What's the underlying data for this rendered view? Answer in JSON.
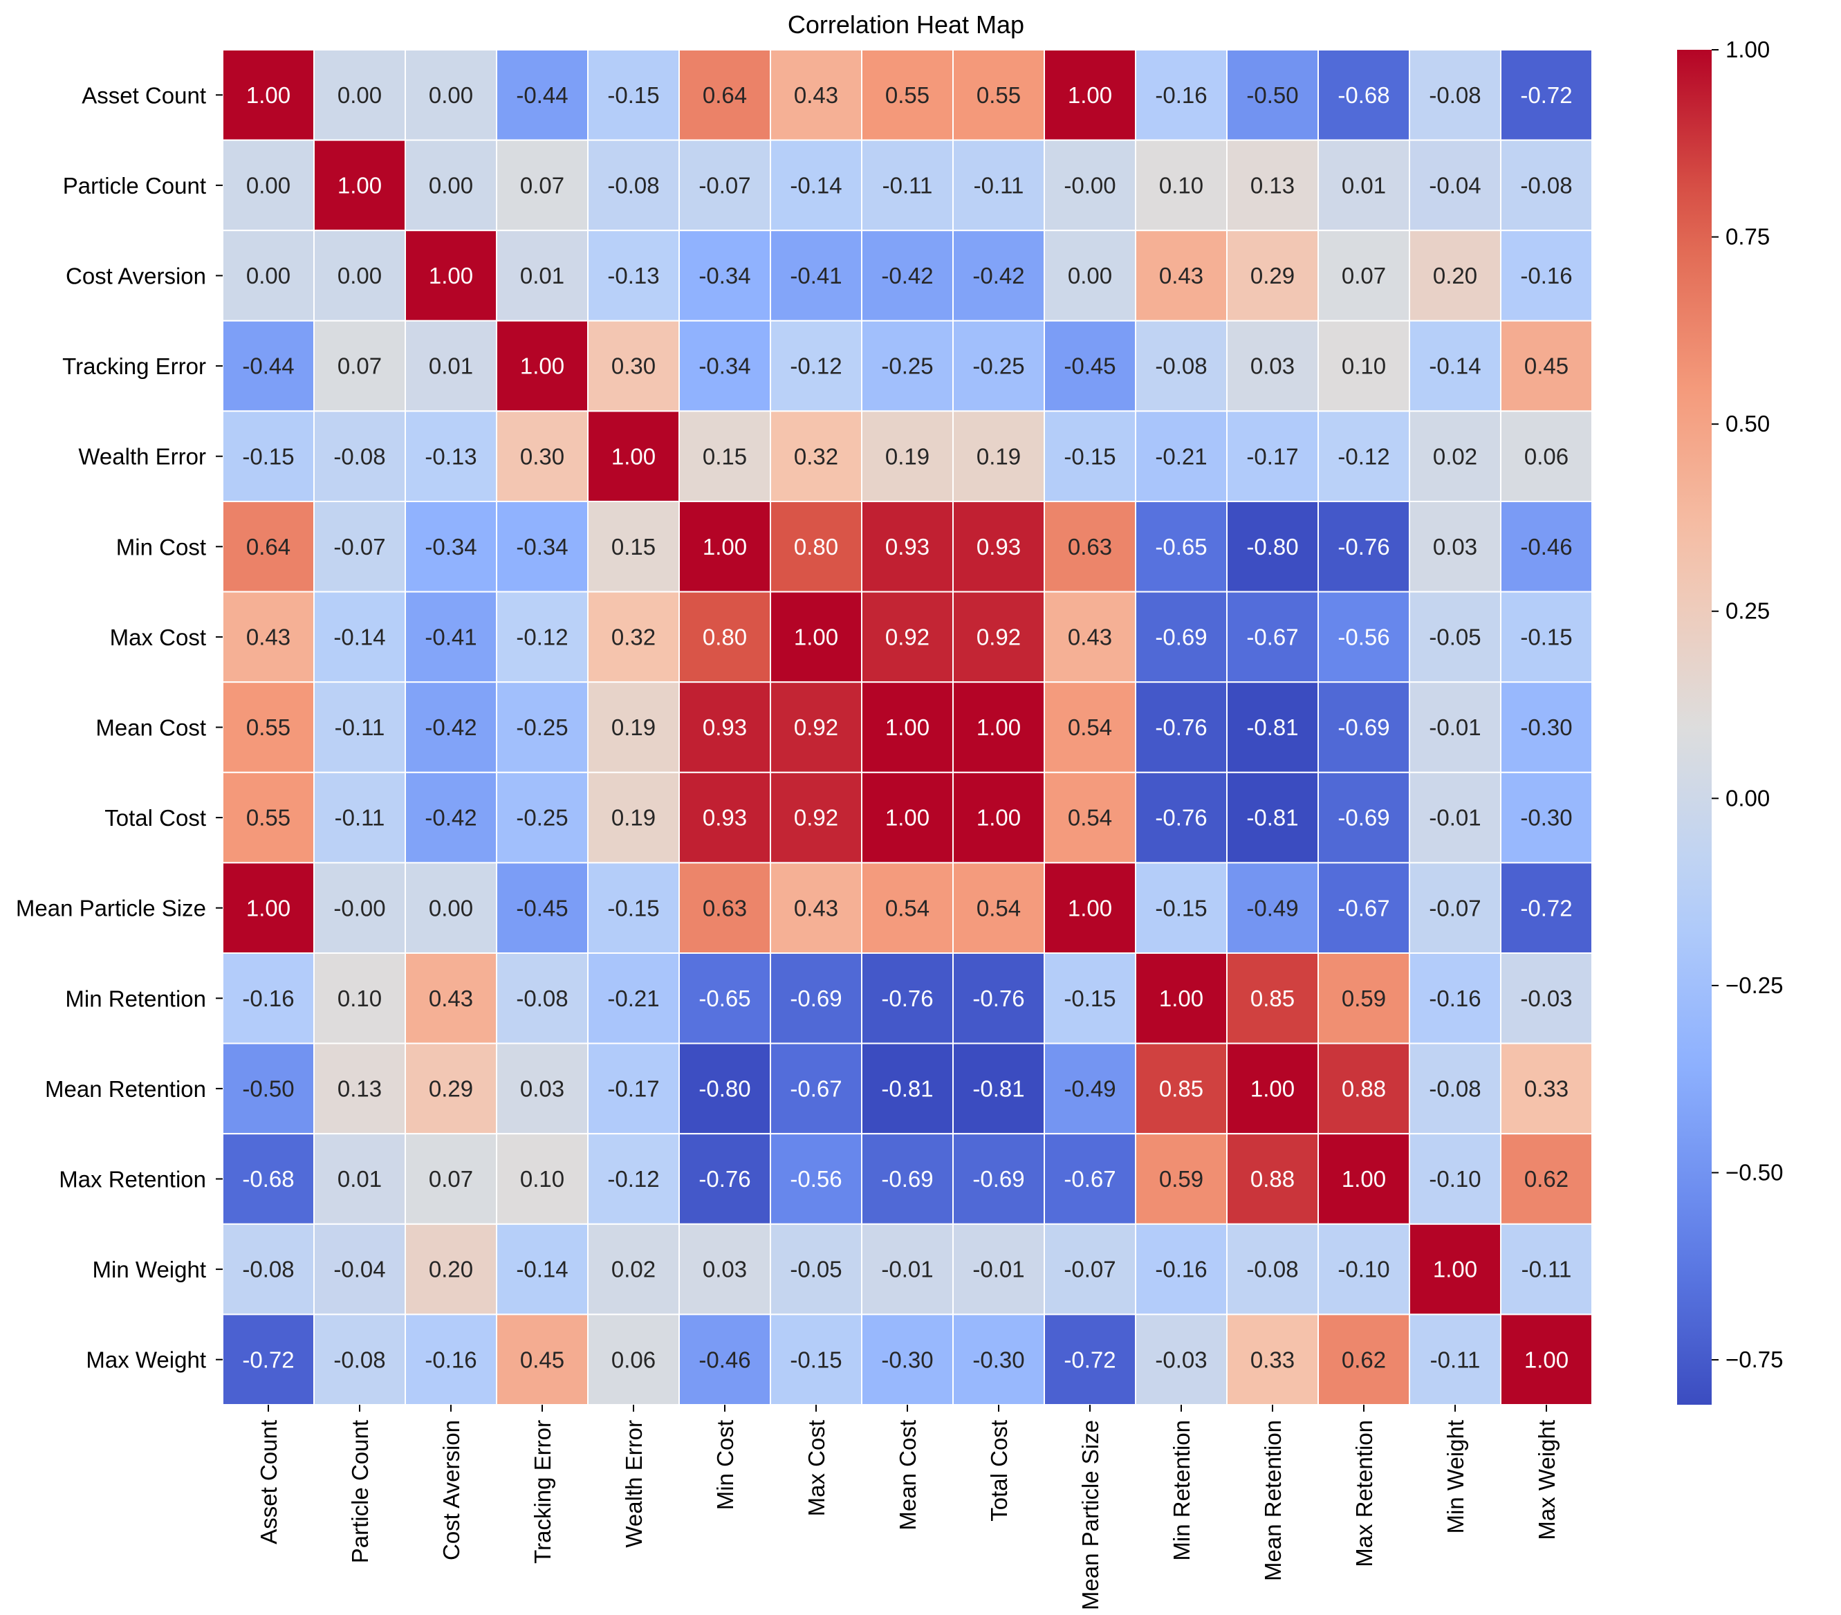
{
  "chart_data": {
    "type": "heatmap",
    "title": "Correlation Heat Map",
    "labels": [
      "Asset Count",
      "Particle Count",
      "Cost Aversion",
      "Tracking Error",
      "Wealth Error",
      "Min Cost",
      "Max Cost",
      "Mean Cost",
      "Total Cost",
      "Mean Particle Size",
      "Min Retention",
      "Mean Retention",
      "Max Retention",
      "Min Weight",
      "Max Weight"
    ],
    "cell_text": [
      [
        "1.00",
        "0.00",
        "0.00",
        "-0.44",
        "-0.15",
        "0.64",
        "0.43",
        "0.55",
        "0.55",
        "1.00",
        "-0.16",
        "-0.50",
        "-0.68",
        "-0.08",
        "-0.72"
      ],
      [
        "0.00",
        "1.00",
        "0.00",
        "0.07",
        "-0.08",
        "-0.07",
        "-0.14",
        "-0.11",
        "-0.11",
        "-0.00",
        "0.10",
        "0.13",
        "0.01",
        "-0.04",
        "-0.08"
      ],
      [
        "0.00",
        "0.00",
        "1.00",
        "0.01",
        "-0.13",
        "-0.34",
        "-0.41",
        "-0.42",
        "-0.42",
        "0.00",
        "0.43",
        "0.29",
        "0.07",
        "0.20",
        "-0.16"
      ],
      [
        "-0.44",
        "0.07",
        "0.01",
        "1.00",
        "0.30",
        "-0.34",
        "-0.12",
        "-0.25",
        "-0.25",
        "-0.45",
        "-0.08",
        "0.03",
        "0.10",
        "-0.14",
        "0.45"
      ],
      [
        "-0.15",
        "-0.08",
        "-0.13",
        "0.30",
        "1.00",
        "0.15",
        "0.32",
        "0.19",
        "0.19",
        "-0.15",
        "-0.21",
        "-0.17",
        "-0.12",
        "0.02",
        "0.06"
      ],
      [
        "0.64",
        "-0.07",
        "-0.34",
        "-0.34",
        "0.15",
        "1.00",
        "0.80",
        "0.93",
        "0.93",
        "0.63",
        "-0.65",
        "-0.80",
        "-0.76",
        "0.03",
        "-0.46"
      ],
      [
        "0.43",
        "-0.14",
        "-0.41",
        "-0.12",
        "0.32",
        "0.80",
        "1.00",
        "0.92",
        "0.92",
        "0.43",
        "-0.69",
        "-0.67",
        "-0.56",
        "-0.05",
        "-0.15"
      ],
      [
        "0.55",
        "-0.11",
        "-0.42",
        "-0.25",
        "0.19",
        "0.93",
        "0.92",
        "1.00",
        "1.00",
        "0.54",
        "-0.76",
        "-0.81",
        "-0.69",
        "-0.01",
        "-0.30"
      ],
      [
        "0.55",
        "-0.11",
        "-0.42",
        "-0.25",
        "0.19",
        "0.93",
        "0.92",
        "1.00",
        "1.00",
        "0.54",
        "-0.76",
        "-0.81",
        "-0.69",
        "-0.01",
        "-0.30"
      ],
      [
        "1.00",
        "-0.00",
        "0.00",
        "-0.45",
        "-0.15",
        "0.63",
        "0.43",
        "0.54",
        "0.54",
        "1.00",
        "-0.15",
        "-0.49",
        "-0.67",
        "-0.07",
        "-0.72"
      ],
      [
        "-0.16",
        "0.10",
        "0.43",
        "-0.08",
        "-0.21",
        "-0.65",
        "-0.69",
        "-0.76",
        "-0.76",
        "-0.15",
        "1.00",
        "0.85",
        "0.59",
        "-0.16",
        "-0.03"
      ],
      [
        "-0.50",
        "0.13",
        "0.29",
        "0.03",
        "-0.17",
        "-0.80",
        "-0.67",
        "-0.81",
        "-0.81",
        "-0.49",
        "0.85",
        "1.00",
        "0.88",
        "-0.08",
        "0.33"
      ],
      [
        "-0.68",
        "0.01",
        "0.07",
        "0.10",
        "-0.12",
        "-0.76",
        "-0.56",
        "-0.69",
        "-0.69",
        "-0.67",
        "0.59",
        "0.88",
        "1.00",
        "-0.10",
        "0.62"
      ],
      [
        "-0.08",
        "-0.04",
        "0.20",
        "-0.14",
        "0.02",
        "0.03",
        "-0.05",
        "-0.01",
        "-0.01",
        "-0.07",
        "-0.16",
        "-0.08",
        "-0.10",
        "1.00",
        "-0.11"
      ],
      [
        "-0.72",
        "-0.08",
        "-0.16",
        "0.45",
        "0.06",
        "-0.46",
        "-0.15",
        "-0.30",
        "-0.30",
        "-0.72",
        "-0.03",
        "0.33",
        "0.62",
        "-0.11",
        "1.00"
      ]
    ],
    "colormap": "coolwarm",
    "vmin": -0.81,
    "vmax": 1.0,
    "colorbar_ticks": [
      1.0,
      0.75,
      0.5,
      0.25,
      0.0,
      -0.25,
      -0.5,
      -0.75
    ],
    "colorbar_tick_labels": [
      "1.00",
      "0.75",
      "0.50",
      "0.25",
      "0.00",
      "−0.25",
      "−0.50",
      "−0.75"
    ],
    "grid_color": "#ffffff",
    "annotations": true
  }
}
